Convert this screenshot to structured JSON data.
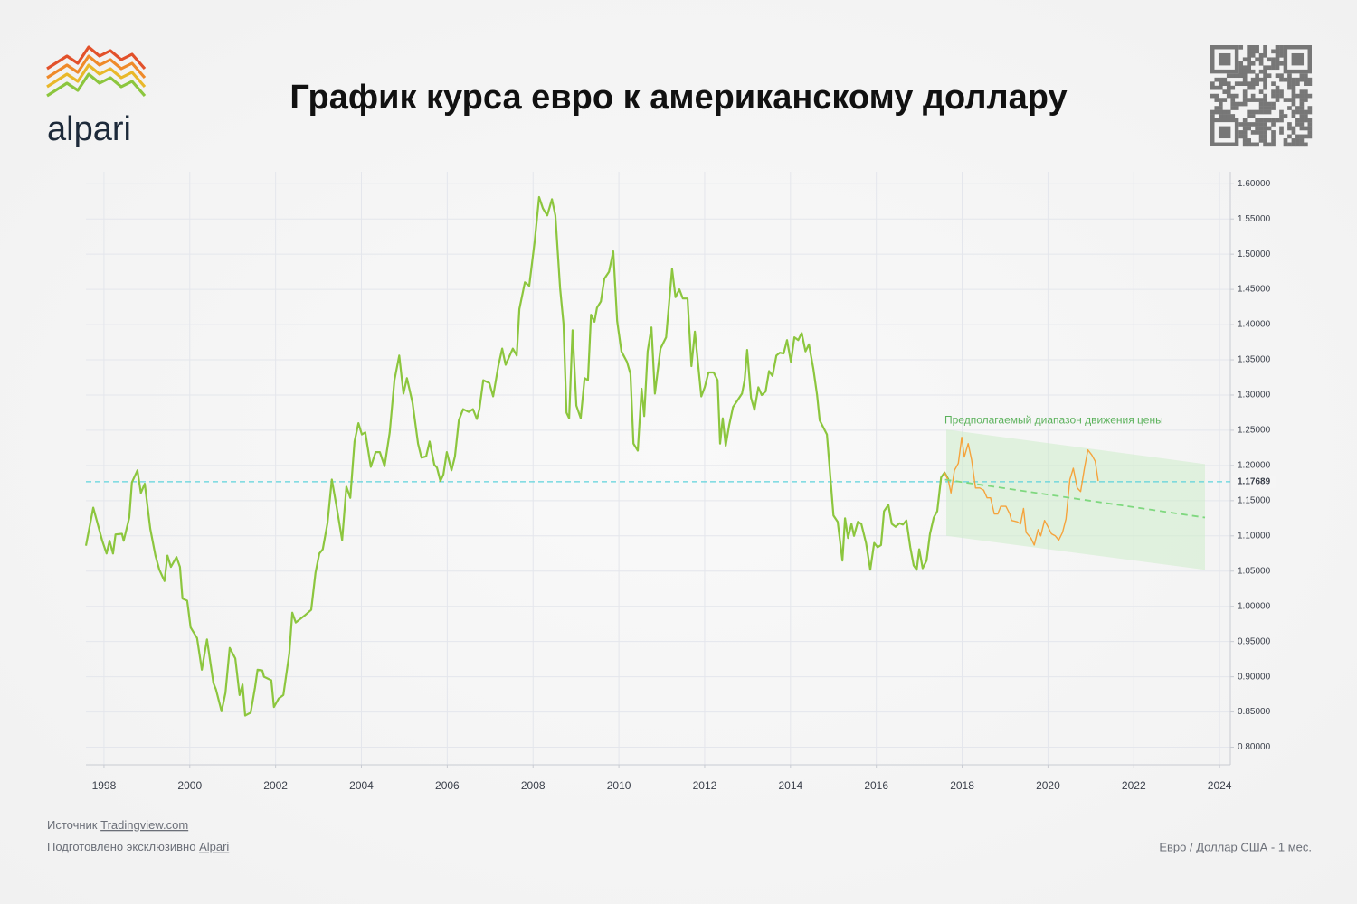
{
  "header": {
    "logo": "alpari"
  },
  "chart_data": {
    "type": "line",
    "title": "График курса евро к американскому доллару",
    "xlim": [
      1997.58,
      2024.25
    ],
    "xticks": [
      1998,
      2000,
      2002,
      2004,
      2006,
      2008,
      2010,
      2012,
      2014,
      2016,
      2018,
      2020,
      2022,
      2024
    ],
    "ylim": [
      0.775,
      1.617
    ],
    "yticks": [
      {
        "value": 0.8,
        "label": "0.80000"
      },
      {
        "value": 0.85,
        "label": "0.85000"
      },
      {
        "value": 0.9,
        "label": "0.90000"
      },
      {
        "value": 0.95,
        "label": "0.95000"
      },
      {
        "value": 1.0,
        "label": "1.00000"
      },
      {
        "value": 1.05,
        "label": "1.05000"
      },
      {
        "value": 1.1,
        "label": "1.10000"
      },
      {
        "value": 1.15,
        "label": "1.15000"
      },
      {
        "value": 1.2,
        "label": "1.20000"
      },
      {
        "value": 1.25,
        "label": "1.25000"
      },
      {
        "value": 1.3,
        "label": "1.30000"
      },
      {
        "value": 1.35,
        "label": "1.35000"
      },
      {
        "value": 1.4,
        "label": "1.40000"
      },
      {
        "value": 1.45,
        "label": "1.45000"
      },
      {
        "value": 1.5,
        "label": "1.50000"
      },
      {
        "value": 1.55,
        "label": "1.55000"
      },
      {
        "value": 1.6,
        "label": "1.60000"
      }
    ],
    "grid": true,
    "series": [
      {
        "color": "#8cc63e",
        "x": [
          1997.58,
          1997.75,
          1997.96,
          1998.06,
          1998.13,
          1998.21,
          1998.27,
          1998.42,
          1998.46,
          1998.59,
          1998.65,
          1998.78,
          1998.86,
          1998.95,
          1999.08,
          1999.2,
          1999.29,
          1999.41,
          1999.48,
          1999.56,
          1999.69,
          1999.77,
          1999.83,
          1999.94,
          2000.02,
          2000.17,
          2000.28,
          2000.4,
          2000.55,
          2000.61,
          2000.74,
          2000.83,
          2000.93,
          2001.06,
          2001.16,
          2001.23,
          2001.29,
          2001.42,
          2001.52,
          2001.58,
          2001.69,
          2001.73,
          2001.9,
          2001.96,
          2002.07,
          2002.18,
          2002.32,
          2002.39,
          2002.47,
          2002.68,
          2002.83,
          2002.93,
          2003.02,
          2003.1,
          2003.21,
          2003.31,
          2003.42,
          2003.55,
          2003.65,
          2003.74,
          2003.84,
          2003.93,
          2004.01,
          2004.09,
          2004.22,
          2004.33,
          2004.43,
          2004.54,
          2004.66,
          2004.77,
          2004.88,
          2004.98,
          2005.06,
          2005.19,
          2005.32,
          2005.4,
          2005.51,
          2005.59,
          2005.7,
          2005.76,
          2005.84,
          2005.91,
          2005.99,
          2006.1,
          2006.18,
          2006.27,
          2006.37,
          2006.5,
          2006.6,
          2006.69,
          2006.75,
          2006.84,
          2006.98,
          2007.07,
          2007.19,
          2007.28,
          2007.36,
          2007.53,
          2007.62,
          2007.68,
          2007.81,
          2007.91,
          2008.04,
          2008.14,
          2008.23,
          2008.33,
          2008.44,
          2008.52,
          2008.63,
          2008.71,
          2008.78,
          2008.84,
          2008.92,
          2009.01,
          2009.11,
          2009.2,
          2009.28,
          2009.35,
          2009.43,
          2009.49,
          2009.58,
          2009.66,
          2009.77,
          2009.87,
          2009.96,
          2010.06,
          2010.19,
          2010.27,
          2010.34,
          2010.44,
          2010.53,
          2010.59,
          2010.67,
          2010.76,
          2010.84,
          2010.97,
          2011.1,
          2011.24,
          2011.32,
          2011.41,
          2011.49,
          2011.6,
          2011.69,
          2011.77,
          2011.92,
          2012.0,
          2012.09,
          2012.21,
          2012.3,
          2012.36,
          2012.42,
          2012.49,
          2012.57,
          2012.66,
          2012.76,
          2012.87,
          2012.93,
          2012.99,
          2013.08,
          2013.16,
          2013.25,
          2013.33,
          2013.42,
          2013.5,
          2013.58,
          2013.67,
          2013.75,
          2013.84,
          2013.92,
          2014.01,
          2014.09,
          2014.18,
          2014.26,
          2014.35,
          2014.43,
          2014.53,
          2014.62,
          2014.68,
          2014.85,
          2015.0,
          2015.1,
          2015.21,
          2015.27,
          2015.34,
          2015.42,
          2015.48,
          2015.57,
          2015.65,
          2015.76,
          2015.86,
          2015.95,
          2016.03,
          2016.11,
          2016.18,
          2016.28,
          2016.36,
          2016.45,
          2016.54,
          2016.62,
          2016.7,
          2016.79,
          2016.87,
          2016.94,
          2017.0,
          2017.08,
          2017.17,
          2017.25,
          2017.34,
          2017.42,
          2017.51,
          2017.59,
          2017.68
        ],
        "values": [
          1.086,
          1.14,
          1.093,
          1.075,
          1.093,
          1.075,
          1.102,
          1.103,
          1.093,
          1.126,
          1.176,
          1.193,
          1.161,
          1.174,
          1.11,
          1.072,
          1.052,
          1.036,
          1.072,
          1.056,
          1.07,
          1.056,
          1.011,
          1.008,
          0.97,
          0.955,
          0.91,
          0.953,
          0.891,
          0.882,
          0.851,
          0.877,
          0.941,
          0.926,
          0.874,
          0.889,
          0.845,
          0.849,
          0.885,
          0.91,
          0.909,
          0.9,
          0.895,
          0.857,
          0.869,
          0.874,
          0.933,
          0.991,
          0.977,
          0.987,
          0.995,
          1.048,
          1.075,
          1.081,
          1.118,
          1.18,
          1.142,
          1.094,
          1.17,
          1.154,
          1.234,
          1.26,
          1.244,
          1.247,
          1.198,
          1.219,
          1.219,
          1.199,
          1.247,
          1.321,
          1.356,
          1.302,
          1.324,
          1.289,
          1.231,
          1.211,
          1.213,
          1.234,
          1.201,
          1.197,
          1.178,
          1.187,
          1.219,
          1.193,
          1.213,
          1.264,
          1.28,
          1.276,
          1.28,
          1.266,
          1.28,
          1.321,
          1.317,
          1.298,
          1.341,
          1.366,
          1.343,
          1.366,
          1.356,
          1.422,
          1.46,
          1.455,
          1.519,
          1.581,
          1.565,
          1.555,
          1.578,
          1.555,
          1.452,
          1.401,
          1.275,
          1.267,
          1.392,
          1.285,
          1.267,
          1.324,
          1.321,
          1.414,
          1.404,
          1.424,
          1.433,
          1.465,
          1.475,
          1.504,
          1.405,
          1.362,
          1.347,
          1.33,
          1.231,
          1.221,
          1.309,
          1.27,
          1.362,
          1.396,
          1.302,
          1.366,
          1.382,
          1.479,
          1.439,
          1.45,
          1.437,
          1.437,
          1.341,
          1.39,
          1.298,
          1.311,
          1.332,
          1.332,
          1.321,
          1.231,
          1.267,
          1.228,
          1.257,
          1.283,
          1.292,
          1.302,
          1.321,
          1.364,
          1.296,
          1.279,
          1.311,
          1.3,
          1.305,
          1.334,
          1.327,
          1.356,
          1.36,
          1.359,
          1.378,
          1.347,
          1.382,
          1.378,
          1.388,
          1.362,
          1.372,
          1.338,
          1.3,
          1.264,
          1.244,
          1.129,
          1.12,
          1.065,
          1.125,
          1.097,
          1.117,
          1.1,
          1.12,
          1.117,
          1.09,
          1.052,
          1.09,
          1.084,
          1.087,
          1.135,
          1.144,
          1.117,
          1.113,
          1.118,
          1.116,
          1.122,
          1.084,
          1.058,
          1.052,
          1.081,
          1.054,
          1.065,
          1.103,
          1.126,
          1.135,
          1.183,
          1.19,
          1.18
        ]
      },
      {
        "color": "#f5a33c",
        "x": [
          2017.59,
          2017.68,
          2017.74,
          2017.82,
          2017.91,
          2017.99,
          2018.05,
          2018.14,
          2018.22,
          2018.31,
          2018.41,
          2018.5,
          2018.58,
          2018.66,
          2018.75,
          2018.83,
          2018.9,
          2019.02,
          2019.11,
          2019.15,
          2019.28,
          2019.36,
          2019.43,
          2019.49,
          2019.6,
          2019.68,
          2019.77,
          2019.83,
          2019.92,
          2020.0,
          2020.08,
          2020.17,
          2020.25,
          2020.34,
          2020.42,
          2020.51,
          2020.59,
          2020.68,
          2020.76,
          2020.85,
          2020.93,
          2021.02,
          2021.1,
          2021.17
        ],
        "values": [
          1.19,
          1.178,
          1.161,
          1.193,
          1.203,
          1.24,
          1.212,
          1.231,
          1.208,
          1.168,
          1.168,
          1.165,
          1.154,
          1.154,
          1.131,
          1.131,
          1.142,
          1.142,
          1.131,
          1.122,
          1.12,
          1.117,
          1.139,
          1.105,
          1.097,
          1.087,
          1.109,
          1.1,
          1.122,
          1.113,
          1.103,
          1.1,
          1.094,
          1.105,
          1.124,
          1.18,
          1.196,
          1.168,
          1.163,
          1.196,
          1.222,
          1.215,
          1.206,
          1.178
        ]
      }
    ],
    "forecast_band": {
      "x": [
        2017.63,
        2023.66
      ],
      "upper": [
        1.251,
        1.202
      ],
      "lower": [
        1.1,
        1.052
      ],
      "color": "#cdeccb"
    },
    "trend": {
      "x": [
        2017.6,
        2023.66
      ],
      "values": [
        1.18,
        1.126
      ],
      "color": "#7fd87f"
    },
    "annotation": "Предполагаемый диапазон движения цены",
    "current_price": 1.17689,
    "current_price_color": "#5fd3dc"
  },
  "footer": {
    "source_prefix": "Источник",
    "source_link": "Tradingview.com",
    "prepared_prefix": "Подготовлено эксклюзивно",
    "prepared_link": "Alpari",
    "instrument": "Евро / Доллар США - 1 мес."
  }
}
